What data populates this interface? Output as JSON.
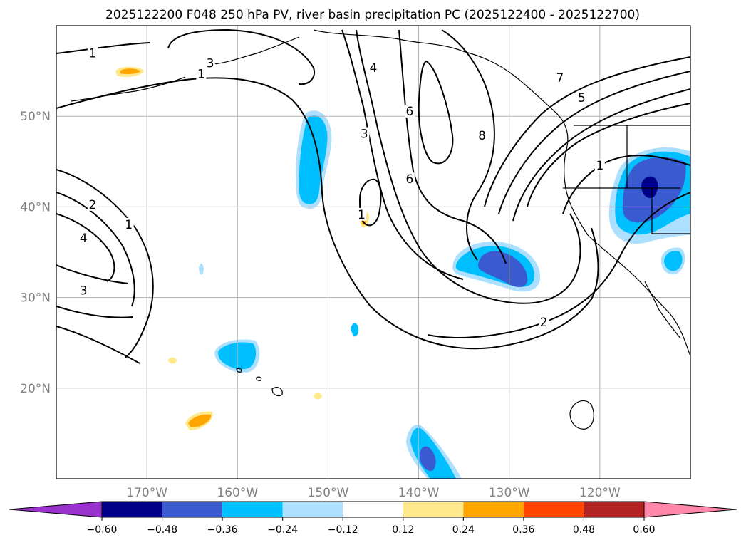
{
  "title": "2025122200 F048 250 hPa PV, river basin precipitation PC (2025122400 - 2025122700)",
  "map": {
    "lon_range": [
      -180,
      -110
    ],
    "lat_range": [
      10,
      60
    ],
    "lon_ticks": [
      {
        "value": -170,
        "label": "170°W"
      },
      {
        "value": -160,
        "label": "160°W"
      },
      {
        "value": -150,
        "label": "150°W"
      },
      {
        "value": -140,
        "label": "140°W"
      },
      {
        "value": -130,
        "label": "130°W"
      },
      {
        "value": -120,
        "label": "120°W"
      }
    ],
    "lat_ticks": [
      {
        "value": 50,
        "label": "50°N"
      },
      {
        "value": 40,
        "label": "40°N"
      },
      {
        "value": 30,
        "label": "30°N"
      },
      {
        "value": 20,
        "label": "20°N"
      }
    ],
    "gridlines": true
  },
  "contour_labels": [
    {
      "text": "1",
      "lon": -176.0,
      "lat": 56.9
    },
    {
      "text": "3",
      "lon": -163.0,
      "lat": 55.8
    },
    {
      "text": "1",
      "lon": -164.0,
      "lat": 54.6
    },
    {
      "text": "4",
      "lon": -145.0,
      "lat": 55.3
    },
    {
      "text": "3",
      "lon": -146.0,
      "lat": 48.0
    },
    {
      "text": "6",
      "lon": -141.0,
      "lat": 50.5
    },
    {
      "text": "6",
      "lon": -141.0,
      "lat": 43.0
    },
    {
      "text": "8",
      "lon": -133.0,
      "lat": 47.8
    },
    {
      "text": "7",
      "lon": -124.4,
      "lat": 54.2
    },
    {
      "text": "5",
      "lon": -122.0,
      "lat": 52.0
    },
    {
      "text": "1",
      "lon": -120.0,
      "lat": 44.5
    },
    {
      "text": "2",
      "lon": -176.0,
      "lat": 40.2
    },
    {
      "text": "1",
      "lon": -172.0,
      "lat": 38.0
    },
    {
      "text": "4",
      "lon": -177.0,
      "lat": 36.5
    },
    {
      "text": "3",
      "lon": -177.0,
      "lat": 30.7
    },
    {
      "text": "1",
      "lon": -146.3,
      "lat": 39.1
    },
    {
      "text": "2",
      "lon": -126.2,
      "lat": 27.2
    }
  ],
  "colorbar": {
    "levels": [
      -0.6,
      -0.48,
      -0.36,
      -0.24,
      -0.12,
      0.12,
      0.24,
      0.36,
      0.48,
      0.6
    ],
    "tick_labels": [
      "−0.60",
      "−0.48",
      "−0.36",
      "−0.24",
      "−0.12",
      "0.12",
      "0.24",
      "0.36",
      "0.48",
      "0.60"
    ],
    "colors": [
      "#9932CC",
      "#00008B",
      "#3A5AD0",
      "#00BFFF",
      "#ADDFFF",
      "#FFFFFF",
      "#FFE98A",
      "#FFA500",
      "#FF4500",
      "#B22222",
      "#FF88AA"
    ]
  },
  "colors": {
    "contour": "#000000",
    "coast": "#000000",
    "grid": "#b0b0b0",
    "tick_text": "#808080"
  }
}
